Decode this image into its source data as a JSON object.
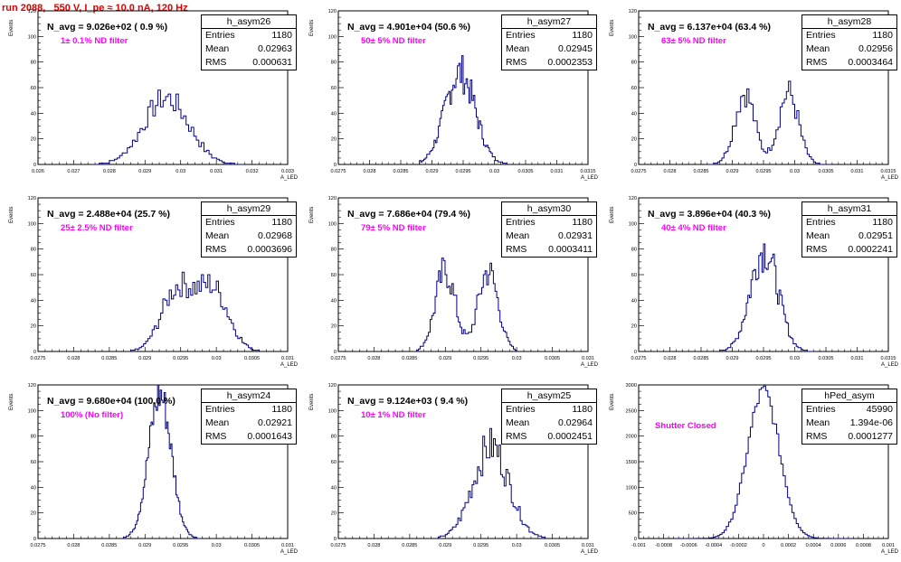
{
  "header": {
    "title": "run 2088,   550 V, I_pe ≈ 10.0 nA, 120 Hz"
  },
  "chart_data": [
    {
      "type": "histogram",
      "name": "h_asym26",
      "summary": "N_avg = 9.026e+02 ( 0.9 %)",
      "filter": "1± 0.1% ND filter",
      "stats": [
        [
          "Entries",
          "1180"
        ],
        [
          "Mean",
          "0.02963"
        ],
        [
          "RMS",
          "0.000631"
        ]
      ],
      "ylabel": "Events",
      "xlabel": "A_LED",
      "xlim": [
        0.026,
        0.033
      ],
      "ylim": [
        0,
        120
      ],
      "xticks": [
        "0.026",
        "0.027",
        "0.028",
        "0.029",
        "0.03",
        "0.031",
        "0.032",
        "0.033"
      ],
      "yticks": [
        "0",
        "20",
        "40",
        "60",
        "80",
        "100",
        "120"
      ],
      "shape": {
        "type": "gauss",
        "mu": 0.0296,
        "sigma": 0.00063,
        "amp": 52,
        "bins": 60,
        "range": [
          0.0275,
          0.0318
        ],
        "noise": 0.2
      }
    },
    {
      "type": "histogram",
      "name": "h_asym27",
      "summary": "N_avg = 4.901e+04 (50.6 %)",
      "filter": "50± 5% ND filter",
      "stats": [
        [
          "Entries",
          "1180"
        ],
        [
          "Mean",
          "0.02945"
        ],
        [
          "RMS",
          "0.0002353"
        ]
      ],
      "ylabel": "Events",
      "xlabel": "A_LED",
      "xlim": [
        0.0275,
        0.0315
      ],
      "ylim": [
        0,
        120
      ],
      "xticks": [
        "0.0275",
        "0.028",
        "0.0285",
        "0.029",
        "0.0295",
        "0.03",
        "0.0305",
        "0.031",
        "0.0315"
      ],
      "yticks": [
        "0",
        "20",
        "40",
        "60",
        "80",
        "100",
        "120"
      ],
      "shape": {
        "type": "gauss",
        "mu": 0.02945,
        "sigma": 0.00024,
        "amp": 72,
        "bins": 60,
        "range": [
          0.0288,
          0.0302
        ],
        "noise": 0.22
      }
    },
    {
      "type": "histogram",
      "name": "h_asym28",
      "summary": "N_avg = 6.137e+04 (63.4 %)",
      "filter": "63± 5% ND filter",
      "stats": [
        [
          "Entries",
          "1180"
        ],
        [
          "Mean",
          "0.02956"
        ],
        [
          "RMS",
          "0.0003464"
        ]
      ],
      "ylabel": "Events",
      "xlabel": "A_LED",
      "xlim": [
        0.0275,
        0.0315
      ],
      "ylim": [
        0,
        120
      ],
      "xticks": [
        "0.0275",
        "0.028",
        "0.0285",
        "0.029",
        "0.0295",
        "0.03",
        "0.0305",
        "0.031",
        "0.0315"
      ],
      "yticks": [
        "0",
        "20",
        "40",
        "60",
        "80",
        "100",
        "120"
      ],
      "shape": {
        "type": "double",
        "mu1": 0.0292,
        "mu2": 0.0299,
        "sigma": 0.00016,
        "amp": 56,
        "bins": 60,
        "range": [
          0.0286,
          0.0306
        ],
        "noise": 0.2
      }
    },
    {
      "type": "histogram",
      "name": "h_asym29",
      "summary": "N_avg = 2.488e+04 (25.7 %)",
      "filter": "25± 2.5% ND filter",
      "stats": [
        [
          "Entries",
          "1180"
        ],
        [
          "Mean",
          "0.02968"
        ],
        [
          "RMS",
          "0.0003696"
        ]
      ],
      "ylabel": "Events",
      "xlabel": "A_LED",
      "xlim": [
        0.0275,
        0.031
      ],
      "ylim": [
        0,
        120
      ],
      "xticks": [
        "0.0275",
        "0.028",
        "0.0285",
        "0.029",
        "0.0295",
        "0.03",
        "0.0305",
        "0.031"
      ],
      "yticks": [
        "0",
        "20",
        "40",
        "60",
        "80",
        "100",
        "120"
      ],
      "shape": {
        "type": "double",
        "mu1": 0.02945,
        "mu2": 0.02995,
        "sigma": 0.00022,
        "amp": 48,
        "bins": 60,
        "range": [
          0.0288,
          0.0306
        ],
        "noise": 0.2
      }
    },
    {
      "type": "histogram",
      "name": "h_asym30",
      "summary": "N_avg = 7.686e+04 (79.4 %)",
      "filter": "79± 5% ND filter",
      "stats": [
        [
          "Entries",
          "1180"
        ],
        [
          "Mean",
          "0.02931"
        ],
        [
          "RMS",
          "0.0003411"
        ]
      ],
      "ylabel": "Events",
      "xlabel": "A_LED",
      "xlim": [
        0.0275,
        0.031
      ],
      "ylim": [
        0,
        120
      ],
      "xticks": [
        "0.0275",
        "0.028",
        "0.0285",
        "0.029",
        "0.0295",
        "0.03",
        "0.0305",
        "0.031"
      ],
      "yticks": [
        "0",
        "20",
        "40",
        "60",
        "80",
        "100",
        "120"
      ],
      "shape": {
        "type": "double",
        "mu1": 0.029,
        "mu2": 0.0296,
        "sigma": 0.00014,
        "amp": 63,
        "bins": 60,
        "range": [
          0.0286,
          0.03
        ],
        "noise": 0.22
      }
    },
    {
      "type": "histogram",
      "name": "h_asym31",
      "summary": "N_avg = 3.896e+04 (40.3 %)",
      "filter": "40± 4% ND filter",
      "stats": [
        [
          "Entries",
          "1180"
        ],
        [
          "Mean",
          "0.02951"
        ],
        [
          "RMS",
          "0.0002241"
        ]
      ],
      "ylabel": "Events",
      "xlabel": "A_LED",
      "xlim": [
        0.0275,
        0.0315
      ],
      "ylim": [
        0,
        120
      ],
      "xticks": [
        "0.0275",
        "0.028",
        "0.0285",
        "0.029",
        "0.0295",
        "0.03",
        "0.0305",
        "0.031",
        "0.0315"
      ],
      "yticks": [
        "0",
        "20",
        "40",
        "60",
        "80",
        "100",
        "120"
      ],
      "shape": {
        "type": "gauss",
        "mu": 0.02951,
        "sigma": 0.00022,
        "amp": 80,
        "bins": 60,
        "range": [
          0.0288,
          0.0303
        ],
        "noise": 0.22
      }
    },
    {
      "type": "histogram",
      "name": "h_asym24",
      "summary": "N_avg = 9.680e+04 (100.0 %)",
      "filter": "100% (No filter)",
      "stats": [
        [
          "Entries",
          "1180"
        ],
        [
          "Mean",
          "0.02921"
        ],
        [
          "RMS",
          "0.0001643"
        ]
      ],
      "ylabel": "Events",
      "xlabel": "A_LED",
      "xlim": [
        0.0275,
        0.031
      ],
      "ylim": [
        0,
        120
      ],
      "xticks": [
        "0.0275",
        "0.028",
        "0.0285",
        "0.029",
        "0.0295",
        "0.03",
        "0.0305",
        "0.031"
      ],
      "yticks": [
        "0",
        "20",
        "40",
        "60",
        "80",
        "100",
        "120"
      ],
      "shape": {
        "type": "gauss",
        "mu": 0.02921,
        "sigma": 0.00016,
        "amp": 112,
        "bins": 60,
        "range": [
          0.0287,
          0.0298
        ],
        "noise": 0.15
      }
    },
    {
      "type": "histogram",
      "name": "h_asym25",
      "summary": "N_avg = 9.124e+03 ( 9.4 %)",
      "filter": "10± 1% ND filter",
      "stats": [
        [
          "Entries",
          "1180"
        ],
        [
          "Mean",
          "0.02964"
        ],
        [
          "RMS",
          "0.0002451"
        ]
      ],
      "ylabel": "Events",
      "xlabel": "A_LED",
      "xlim": [
        0.0275,
        0.031
      ],
      "ylim": [
        0,
        120
      ],
      "xticks": [
        "0.0275",
        "0.028",
        "0.0285",
        "0.029",
        "0.0295",
        "0.03",
        "0.0305",
        "0.031"
      ],
      "yticks": [
        "0",
        "20",
        "40",
        "60",
        "80",
        "100",
        "120"
      ],
      "shape": {
        "type": "gauss",
        "mu": 0.02964,
        "sigma": 0.00025,
        "amp": 72,
        "bins": 60,
        "range": [
          0.0289,
          0.0304
        ],
        "noise": 0.22
      }
    },
    {
      "type": "histogram",
      "name": "hPed_asym",
      "summary": "",
      "filter": "Shutter Closed",
      "stats": [
        [
          "Entries",
          "45990"
        ],
        [
          "Mean",
          "1.394e-06"
        ],
        [
          "RMS",
          "0.0001277"
        ]
      ],
      "ylabel": "Events",
      "xlabel": "A_LED",
      "xlim": [
        -0.001,
        0.001
      ],
      "ylim": [
        0,
        3400
      ],
      "xticks": [
        "-0.001",
        "-0.0008",
        "-0.0006",
        "-0.0004",
        "-0.0002",
        "0",
        "0.0002",
        "0.0004",
        "0.0006",
        "0.0008",
        "0.001"
      ],
      "yticks": [
        "0",
        "500",
        "1000",
        "1500",
        "2000",
        "2500",
        "3000"
      ],
      "shape": {
        "type": "gauss",
        "mu": 0.0,
        "sigma": 0.000128,
        "amp": 3250,
        "bins": 80,
        "range": [
          -0.0007,
          0.0007
        ],
        "noise": 0.06
      }
    }
  ]
}
